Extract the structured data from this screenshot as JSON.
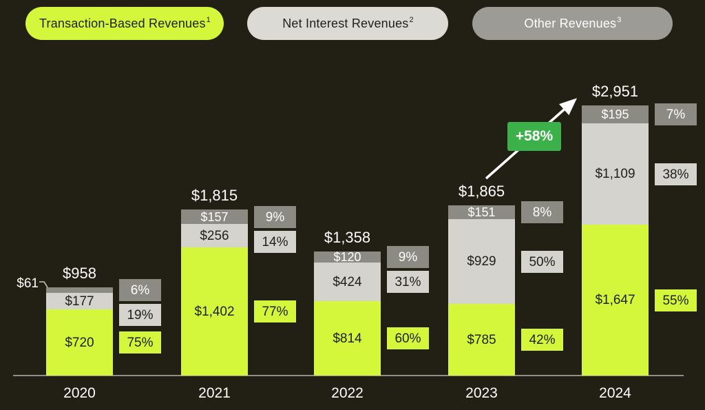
{
  "legend": {
    "items": [
      {
        "label": "Transaction-Based Revenues",
        "footnote": "1",
        "bg": "#d4f73c",
        "text": "#21201a"
      },
      {
        "label": "Net Interest Revenues",
        "footnote": "2",
        "bg": "#dcdad5",
        "text": "#21201a"
      },
      {
        "label": "Other Revenues",
        "footnote": "3",
        "bg": "#9d9b96",
        "text": "#ffffff"
      }
    ]
  },
  "chart_data": {
    "type": "bar",
    "stacked": true,
    "title": "",
    "categories": [
      "2020",
      "2021",
      "2022",
      "2023",
      "2024"
    ],
    "totals": [
      "$958",
      "$1,815",
      "$1,358",
      "$1,865",
      "$2,951"
    ],
    "series": [
      {
        "name": "Transaction-Based Revenues",
        "color": "#d4f73c",
        "label_color": "#21201a",
        "values": [
          720,
          1402,
          814,
          785,
          1647
        ],
        "labels": [
          "$720",
          "$1,402",
          "$814",
          "$785",
          "$1,647"
        ],
        "pcts": [
          "75%",
          "77%",
          "60%",
          "42%",
          "55%"
        ]
      },
      {
        "name": "Net Interest Revenues",
        "color": "#d5d3ce",
        "label_color": "#21201a",
        "values": [
          177,
          256,
          424,
          929,
          1109
        ],
        "labels": [
          "$177",
          "$256",
          "$424",
          "$929",
          "$1,109"
        ],
        "pcts": [
          "19%",
          "14%",
          "31%",
          "50%",
          "38%"
        ]
      },
      {
        "name": "Other Revenues",
        "color": "#8b8a83",
        "label_color": "#ffffff",
        "values": [
          61,
          157,
          120,
          151,
          195
        ],
        "labels": [
          "$61",
          "$157",
          "$120",
          "$151",
          "$195"
        ],
        "pcts": [
          "6%",
          "9%",
          "9%",
          "8%",
          "7%"
        ]
      }
    ],
    "annotation": {
      "label": "+58%",
      "from_year": "2023",
      "to_year": "2024",
      "color": "#3cb14a"
    },
    "callout": {
      "label": "$61",
      "year": "2020",
      "series": "Other Revenues"
    },
    "ylim": [
      0,
      2951
    ],
    "grid": false,
    "legend_position": "top"
  },
  "colors": {
    "background": "#221f14",
    "axis_line": "#908e88",
    "white_text": "#ffffff",
    "dark_text": "#21201a"
  }
}
